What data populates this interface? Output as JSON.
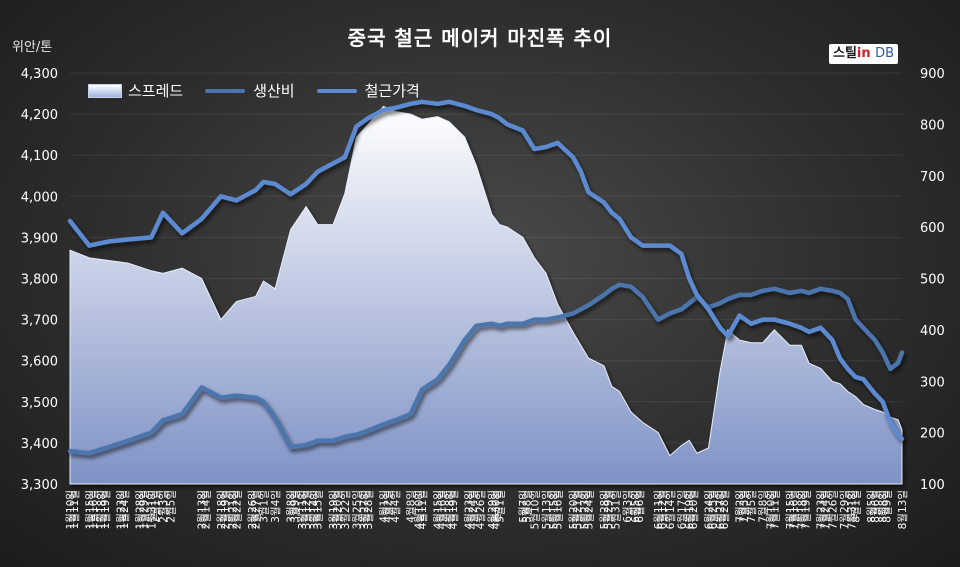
{
  "chart_data": {
    "type": "line",
    "title": "중국 철근 메이커 마진폭 추이",
    "ylabel": "위안/톤",
    "ylim": [
      3300,
      4300
    ],
    "y2lim": [
      100,
      900
    ],
    "yticks": [
      3300,
      3400,
      3500,
      3600,
      3700,
      3800,
      3900,
      4000,
      4100,
      4200,
      4300
    ],
    "y2ticks": [
      100,
      200,
      300,
      400,
      500,
      600,
      700,
      800,
      900
    ],
    "legend_position": "top-left",
    "x": [
      "1월10일",
      "1월11일",
      "1월12일",
      "1월13일",
      "1월14일",
      "1월15일",
      "1월16일",
      "1월17일",
      "1월18일",
      "1월19일",
      "1월20일",
      "1월21일",
      "1월22일",
      "1월23일",
      "1월24일",
      "1월25일",
      "1월26일",
      "1월27일",
      "1월28일",
      "1월29일",
      "1월30일",
      "1월31일",
      "2월1일",
      "2월2일",
      "2월3일",
      "2월4일",
      "2월5일",
      "2월6일",
      "2월7일",
      "2월8일",
      "2월9일",
      "2월10일",
      "2월11일",
      "2월12일",
      "2월13일",
      "2월14일",
      "2월15일",
      "2월16일",
      "2월17일",
      "2월18일",
      "2월19일",
      "2월20일",
      "2월21일",
      "2월22일",
      "2월23일",
      "2월24일",
      "2월25일",
      "2월26일",
      "2월27일",
      "2월28일",
      "3월1일",
      "3월2일",
      "3월3일",
      "3월4일",
      "3월5일",
      "3월6일",
      "3월7일",
      "3월8일",
      "3월9일",
      "3월10일",
      "3월11일",
      "3월12일",
      "3월13일",
      "3월14일",
      "3월15일",
      "3월16일",
      "3월17일",
      "3월18일",
      "3월19일",
      "3월20일",
      "3월21일",
      "3월22일",
      "3월23일",
      "3월24일",
      "3월25일",
      "3월26일",
      "3월27일",
      "3월28일",
      "3월29일",
      "3월30일",
      "3월31일",
      "4월1일",
      "4월2일",
      "4월3일",
      "4월4일",
      "4월5일",
      "4월6일",
      "4월7일",
      "4월8일",
      "4월9일",
      "4월10일",
      "4월11일",
      "4월12일",
      "4월13일",
      "4월14일",
      "4월15일",
      "4월16일",
      "4월17일",
      "4월18일",
      "4월19일",
      "4월20일",
      "4월21일",
      "4월22일",
      "4월23일",
      "4월24일",
      "4월25일",
      "4월26일",
      "4월27일",
      "4월28일",
      "4월29일",
      "4월30일",
      "5월1일",
      "5월2일",
      "5월3일",
      "5월4일",
      "5월5일",
      "5월6일",
      "5월7일",
      "5월8일",
      "5월9일",
      "5월10일",
      "5월11일",
      "5월12일",
      "5월13일",
      "5월14일",
      "5월15일",
      "5월16일",
      "5월17일",
      "5월18일",
      "5월19일",
      "5월20일",
      "5월21일",
      "5월22일",
      "5월23일",
      "5월24일",
      "5월25일",
      "5월26일",
      "5월27일",
      "5월28일",
      "5월29일",
      "5월30일",
      "5월31일",
      "6월1일",
      "6월2일",
      "6월3일",
      "6월4일",
      "6월5일",
      "6월6일",
      "6월7일",
      "6월8일",
      "6월9일",
      "6월10일",
      "6월11일",
      "6월12일",
      "6월13일",
      "6월14일",
      "6월15일",
      "6월16일",
      "6월17일",
      "6월18일",
      "6월19일",
      "6월20일",
      "6월21일",
      "6월22일",
      "6월23일",
      "6월24일",
      "6월25일",
      "6월26일",
      "6월27일",
      "6월28일",
      "6월29일",
      "6월30일",
      "7월1일",
      "7월2일",
      "7월3일",
      "7월4일",
      "7월5일",
      "7월6일",
      "7월7일",
      "7월8일",
      "7월9일",
      "7월10일",
      "7월11일",
      "7월12일",
      "7월13일",
      "7월14일",
      "7월15일",
      "7월16일",
      "7월17일",
      "7월18일",
      "7월19일",
      "7월20일",
      "7월21일",
      "7월22일",
      "7월23일",
      "7월24일",
      "7월25일",
      "7월26일",
      "7월27일",
      "7월28일",
      "7월29일",
      "7월30일",
      "7월31일",
      "8월1일",
      "8월2일",
      "8월3일",
      "8월4일",
      "8월5일",
      "8월6일",
      "8월7일",
      "8월8일",
      "8월9일",
      "8월10일",
      "8월11일",
      "8월12일",
      "8월13일"
    ],
    "x_tick_labels": [
      "1월10일",
      "1월11일",
      "1월15일",
      "1월16일",
      "1월18일",
      "1월19일",
      "1월23일",
      "1월24일",
      "1월28일",
      "1월29일",
      "1월31일",
      "2월1일",
      "2월3일",
      "2월5일",
      "2월13일",
      "2월14일",
      "2월18일",
      "2월19일",
      "2월21일",
      "2월22일",
      "2월26일",
      "2월27일",
      "3월1일",
      "3월4일",
      "3월8일",
      "3월9일",
      "3월11일",
      "3월12일",
      "3월14일",
      "3월15일",
      "3월19일",
      "3월20일",
      "3월22일",
      "3월25일",
      "3월27일",
      "3월28일",
      "4월1일",
      "4월2일",
      "4월4일",
      "4월8일",
      "4월10일",
      "4월11일",
      "4월15일",
      "4월16일",
      "4월18일",
      "4월19일",
      "4월23일",
      "4월24일",
      "4월26일",
      "4월29일",
      "4월30일",
      "5월1일",
      "5월7일",
      "5월8일",
      "5월10일",
      "5월13일",
      "5월15일",
      "5월16일",
      "5월20일",
      "5월21일",
      "5월23일",
      "5월24일",
      "5월28일",
      "5월29일",
      "5월31일",
      "6월3일",
      "6월5일",
      "6월6일",
      "6월11일",
      "6월12일",
      "6월14일",
      "6월17일",
      "6월19일",
      "6월20일",
      "6월24일",
      "6월25일",
      "6월27일",
      "6월28일",
      "7월2일",
      "7월3일",
      "7월5일",
      "7월8일",
      "7월10일",
      "7월11일",
      "7월15일",
      "7월16일",
      "7월18일",
      "7월19일",
      "7월23일",
      "7월24일",
      "7월26일",
      "7월29일",
      "7월31일",
      "8월1일",
      "8월5일",
      "8월6일",
      "8월8일",
      "8월9일",
      "8월13일"
    ],
    "series": [
      {
        "name": "스프레드",
        "axis": "right",
        "kind": "area",
        "x": [
          "1월10일",
          "1월15일",
          "1월20일",
          "1월25일",
          "1월31일",
          "2월3일",
          "2월8일",
          "2월13일",
          "2월18일",
          "2월22일",
          "2월27일",
          "3월1일",
          "3월4일",
          "3월8일",
          "3월12일",
          "3월15일",
          "3월19일",
          "3월22일",
          "3월25일",
          "3월28일",
          "4월1일",
          "4월4일",
          "4월8일",
          "4월11일",
          "4월15일",
          "4월18일",
          "4월22일",
          "4월25일",
          "4월29일",
          "5월1일",
          "5월3일",
          "5월7일",
          "5월10일",
          "5월13일",
          "5월16일",
          "5월20일",
          "5월22일",
          "5월24일",
          "5월28일",
          "5월30일",
          "6월1일",
          "6월4일",
          "6월7일",
          "6월11일",
          "6월14일",
          "6월17일",
          "6월19일",
          "6월21일",
          "6월24일",
          "6월27일",
          "6월29일",
          "7월2일",
          "7월5일",
          "7월8일",
          "7월11일",
          "7월15일",
          "7월18일",
          "7월20일",
          "7월23일",
          "7월26일",
          "7월28일",
          "7월30일",
          "8월1일",
          "8월3일",
          "8월6일",
          "8월8일",
          "8월10일",
          "8월12일",
          "8월13일"
        ],
        "values": [
          555,
          540,
          535,
          530,
          515,
          510,
          520,
          500,
          420,
          455,
          465,
          495,
          480,
          595,
          640,
          605,
          605,
          665,
          775,
          800,
          835,
          825,
          820,
          810,
          815,
          805,
          775,
          720,
          625,
          605,
          600,
          580,
          540,
          510,
          450,
          395,
          370,
          345,
          330,
          290,
          280,
          240,
          220,
          200,
          155,
          175,
          185,
          160,
          170,
          320,
          400,
          380,
          375,
          375,
          400,
          370,
          370,
          335,
          325,
          300,
          295,
          280,
          270,
          255,
          245,
          240,
          230,
          225,
          205
        ]
      },
      {
        "name": "생산비",
        "axis": "left",
        "kind": "line",
        "x": [
          "1월10일",
          "1월15일",
          "1월20일",
          "1월25일",
          "1월31일",
          "2월3일",
          "2월8일",
          "2월13일",
          "2월18일",
          "2월22일",
          "2월27일",
          "3월1일",
          "3월4일",
          "3월8일",
          "3월12일",
          "3월15일",
          "3월19일",
          "3월22일",
          "3월25일",
          "3월28일",
          "4월1일",
          "4월4일",
          "4월8일",
          "4월11일",
          "4월15일",
          "4월18일",
          "4월22일",
          "4월25일",
          "4월29일",
          "5월1일",
          "5월3일",
          "5월7일",
          "5월10일",
          "5월13일",
          "5월16일",
          "5월20일",
          "5월22일",
          "5월24일",
          "5월28일",
          "5월30일",
          "6월1일",
          "6월4일",
          "6월7일",
          "6월11일",
          "6월14일",
          "6월17일",
          "6월19일",
          "6월21일",
          "6월24일",
          "6월27일",
          "6월29일",
          "7월2일",
          "7월5일",
          "7월8일",
          "7월11일",
          "7월15일",
          "7월18일",
          "7월20일",
          "7월23일",
          "7월26일",
          "7월28일",
          "7월30일",
          "8월1일",
          "8월3일",
          "8월6일",
          "8월8일",
          "8월10일",
          "8월12일",
          "8월13일"
        ],
        "values": [
          3380,
          3375,
          3390,
          3405,
          3425,
          3455,
          3470,
          3535,
          3510,
          3515,
          3510,
          3500,
          3460,
          3390,
          3395,
          3405,
          3405,
          3415,
          3420,
          3430,
          3445,
          3455,
          3470,
          3530,
          3555,
          3590,
          3650,
          3685,
          3690,
          3685,
          3690,
          3690,
          3700,
          3700,
          3705,
          3715,
          3725,
          3735,
          3760,
          3775,
          3785,
          3780,
          3755,
          3700,
          3715,
          3725,
          3740,
          3755,
          3730,
          3740,
          3750,
          3760,
          3760,
          3770,
          3775,
          3765,
          3770,
          3765,
          3775,
          3770,
          3765,
          3750,
          3700,
          3680,
          3650,
          3620,
          3580,
          3595,
          3620
        ]
      },
      {
        "name": "철근가격",
        "axis": "left",
        "kind": "line",
        "x": [
          "1월10일",
          "1월15일",
          "1월20일",
          "1월25일",
          "1월31일",
          "2월3일",
          "2월8일",
          "2월13일",
          "2월18일",
          "2월22일",
          "2월27일",
          "3월1일",
          "3월4일",
          "3월8일",
          "3월12일",
          "3월15일",
          "3월19일",
          "3월22일",
          "3월25일",
          "3월28일",
          "4월1일",
          "4월4일",
          "4월8일",
          "4월11일",
          "4월15일",
          "4월18일",
          "4월22일",
          "4월25일",
          "4월29일",
          "5월1일",
          "5월3일",
          "5월7일",
          "5월10일",
          "5월13일",
          "5월16일",
          "5월20일",
          "5월22일",
          "5월24일",
          "5월28일",
          "5월30일",
          "6월1일",
          "6월4일",
          "6월7일",
          "6월11일",
          "6월14일",
          "6월17일",
          "6월19일",
          "6월21일",
          "6월24일",
          "6월27일",
          "6월29일",
          "7월2일",
          "7월5일",
          "7월8일",
          "7월11일",
          "7월15일",
          "7월18일",
          "7월20일",
          "7월23일",
          "7월26일",
          "7월28일",
          "7월30일",
          "8월1일",
          "8월3일",
          "8월6일",
          "8월8일",
          "8월10일",
          "8월12일",
          "8월13일"
        ],
        "values": [
          3940,
          3880,
          3890,
          3895,
          3900,
          3960,
          3910,
          3945,
          4000,
          3990,
          4015,
          4035,
          4030,
          4005,
          4030,
          4060,
          4080,
          4095,
          4170,
          4190,
          4210,
          4215,
          4225,
          4230,
          4225,
          4230,
          4220,
          4210,
          4200,
          4190,
          4175,
          4160,
          4115,
          4120,
          4130,
          4095,
          4060,
          4010,
          3985,
          3960,
          3945,
          3900,
          3880,
          3880,
          3880,
          3860,
          3800,
          3760,
          3725,
          3680,
          3660,
          3710,
          3690,
          3700,
          3700,
          3690,
          3680,
          3670,
          3680,
          3650,
          3605,
          3580,
          3560,
          3555,
          3520,
          3500,
          3450,
          3420,
          3410
        ]
      }
    ]
  },
  "legend": [
    "스프레드",
    "생산비",
    "철근가격"
  ],
  "logo": {
    "korean": "스틸",
    "in": "in",
    "db": "DB"
  },
  "colors": {
    "area_top": "#ffffff",
    "area_bottom": "#7f92c6",
    "cost_line": "#4b74ad",
    "price_line": "#5b8ad0",
    "axis_text": "#ffffff"
  }
}
